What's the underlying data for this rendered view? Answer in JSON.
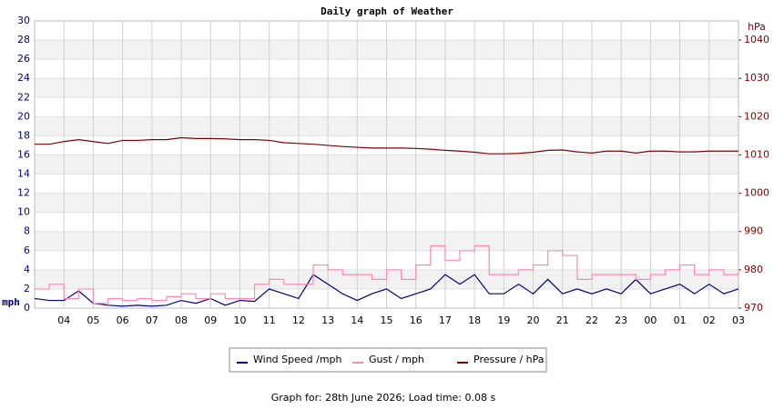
{
  "chart_data": {
    "type": "line",
    "title": "Daily graph of Weather",
    "ylabel": "mph",
    "y2label": "hPa",
    "footer": "Graph for: 28th June 2026; Load time: 0.08 s",
    "x": [
      3,
      3.5,
      4,
      4.5,
      5,
      5.5,
      6,
      6.5,
      7,
      7.5,
      8,
      8.5,
      9,
      9.5,
      10,
      10.5,
      11,
      11.5,
      12,
      12.5,
      13,
      13.5,
      14,
      14.5,
      15,
      15.5,
      16,
      16.5,
      17,
      17.5,
      18,
      18.5,
      19,
      19.5,
      20,
      20.5,
      21,
      21.5,
      22,
      22.5,
      23,
      23.5,
      24,
      24.5,
      25,
      25.5,
      26,
      26.5,
      27
    ],
    "xlim": [
      3,
      27
    ],
    "xticks": [
      {
        "value": 4,
        "label": "04"
      },
      {
        "value": 5,
        "label": "05"
      },
      {
        "value": 6,
        "label": "06"
      },
      {
        "value": 7,
        "label": "07"
      },
      {
        "value": 8,
        "label": "08"
      },
      {
        "value": 9,
        "label": "09"
      },
      10,
      11,
      12,
      13,
      14,
      15,
      16,
      17,
      18,
      19,
      20,
      21,
      22,
      23,
      {
        "value": 24,
        "label": "00"
      },
      {
        "value": 25,
        "label": "01"
      },
      {
        "value": 26,
        "label": "02"
      },
      {
        "value": 27,
        "label": "03"
      }
    ],
    "ylim": [
      0,
      30
    ],
    "yticks": [
      0,
      2,
      4,
      6,
      8,
      10,
      12,
      14,
      16,
      18,
      20,
      22,
      24,
      26,
      28,
      30
    ],
    "y2lim": [
      970,
      1045
    ],
    "y2ticks": [
      970,
      980,
      990,
      1000,
      1010,
      1020,
      1030,
      1040
    ],
    "grid": true,
    "legend": "bottom",
    "series": [
      {
        "name": "Wind Speed /mph",
        "color": "#000080",
        "values": [
          1,
          0.8,
          0.8,
          1.8,
          0.5,
          0.3,
          0.2,
          0.3,
          0.2,
          0.3,
          0.8,
          0.5,
          1,
          0.3,
          0.8,
          0.7,
          2,
          1.5,
          1,
          3.5,
          2.5,
          1.5,
          0.8,
          1.5,
          2,
          1,
          1.5,
          2,
          3.5,
          2.5,
          3.5,
          1.5,
          1.5,
          2.5,
          1.5,
          3,
          1.5,
          2,
          1.5,
          2,
          1.5,
          3,
          1.5,
          2,
          2.5,
          1.5,
          2.5,
          1.5,
          2
        ]
      },
      {
        "name": "Gust / mph",
        "color": "#ff88b8",
        "step": true,
        "values": [
          2,
          2.5,
          1,
          2,
          0.5,
          1,
          0.8,
          1,
          0.8,
          1.2,
          1.5,
          1,
          1.5,
          1,
          1,
          2.5,
          3,
          2.5,
          2.5,
          4.5,
          4,
          3.5,
          3.5,
          3,
          4,
          3,
          4.5,
          6.5,
          5,
          6,
          6.5,
          3.5,
          3.5,
          4,
          4.5,
          6,
          5.5,
          3,
          3.5,
          3.5,
          3.5,
          3,
          3.5,
          4,
          4.5,
          3.5,
          4,
          3.5,
          4
        ]
      },
      {
        "name": "Pressure / hPa",
        "color": "#800000",
        "axis": "y2",
        "values": [
          1012.8,
          1012.8,
          1013.5,
          1014,
          1013.5,
          1013,
          1013.8,
          1013.8,
          1014,
          1014,
          1014.5,
          1014.3,
          1014.3,
          1014.2,
          1014,
          1014,
          1013.8,
          1013.2,
          1013,
          1012.8,
          1012.5,
          1012.2,
          1012,
          1011.8,
          1011.8,
          1011.8,
          1011.7,
          1011.5,
          1011.2,
          1011,
          1010.7,
          1010.3,
          1010.3,
          1010.4,
          1010.7,
          1011.2,
          1011.3,
          1010.8,
          1010.5,
          1011,
          1011,
          1010.5,
          1011,
          1011,
          1010.8,
          1010.8,
          1011,
          1011,
          1011
        ]
      }
    ]
  }
}
